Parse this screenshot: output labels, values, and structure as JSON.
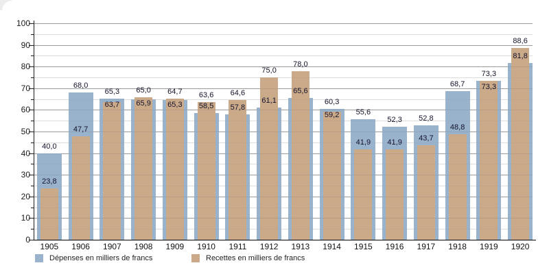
{
  "chart_data": {
    "type": "bar",
    "title": "",
    "xlabel": "",
    "ylabel": "",
    "categories": [
      "1905",
      "1906",
      "1907",
      "1908",
      "1909",
      "1910",
      "1911",
      "1912",
      "1913",
      "1914",
      "1915",
      "1916",
      "1917",
      "1918",
      "1919",
      "1920"
    ],
    "series": [
      {
        "name": "Dépenses en milliers de francs",
        "color": "#9ab3cd",
        "values": [
          40.0,
          68.0,
          65.3,
          65.0,
          64.7,
          58.5,
          57.8,
          61.1,
          65.6,
          60.3,
          55.6,
          52.3,
          52.8,
          68.7,
          73.3,
          81.8
        ]
      },
      {
        "name": "Recettes en milliers de francs",
        "color": "#cbaa8a",
        "values": [
          23.8,
          47.7,
          63.7,
          65.9,
          65.3,
          63.6,
          64.6,
          75.0,
          78.0,
          59.2,
          41.9,
          41.9,
          43.7,
          48.8,
          73.3,
          88.6
        ]
      }
    ],
    "ylim": [
      0,
      100
    ],
    "y_ticks": [
      0,
      10,
      20,
      30,
      40,
      50,
      60,
      70,
      80,
      90,
      100
    ],
    "y_minor_step": 5,
    "grid": true,
    "legend_position": "bottom",
    "decimal_separator": ","
  },
  "colors": {
    "background": "#ffffff",
    "axis": "#1c1c1c",
    "baseline": "#000000",
    "major_grid": "#a6a6a6",
    "minor_grid": "#e7e7e7",
    "value_label": "#12122a",
    "tick_label": "#1a1a1a"
  }
}
